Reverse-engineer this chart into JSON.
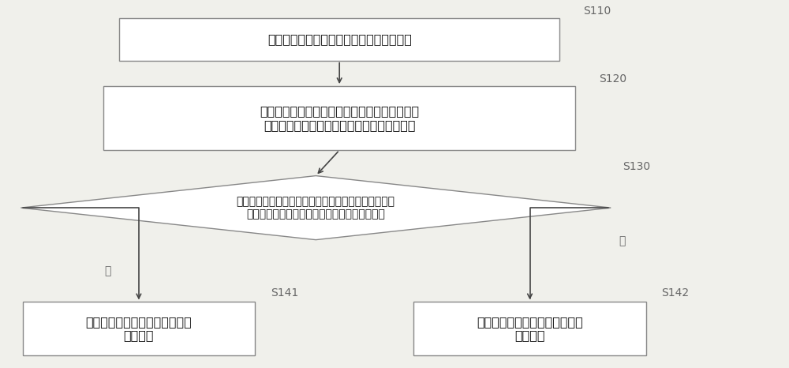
{
  "bg_color": "#f0f0eb",
  "box_color": "#ffffff",
  "box_edge_color": "#888888",
  "diamond_color": "#ffffff",
  "diamond_edge_color": "#888888",
  "arrow_color": "#444444",
  "text_color": "#111111",
  "label_color": "#666666",
  "font_size": 11.5,
  "label_font_size": 10,
  "box1_text": "获得调节区域即将切换到的下一帧画面信息",
  "box1_label": "S110",
  "box2_text": "分析所述下一帧画面信息中红色子像素、绿色子\n像素、蓝色子像素在每个像素中的占主导情况",
  "box2_label": "S120",
  "diamond_text": "判断所述绿色子像素占主导情况的占比是否大于或等于\n红色子像素和蓝色子像素占主导情况的占比之和",
  "diamond_label": "S130",
  "box3_text": "背光亮度以第一亮度阶数调节到\n目标亮度",
  "box3_label": "S141",
  "box4_text": "背光亮度以第二亮度阶数调节到\n目光亮度",
  "box4_label": "S142",
  "yes_label": "是",
  "no_label": "否"
}
